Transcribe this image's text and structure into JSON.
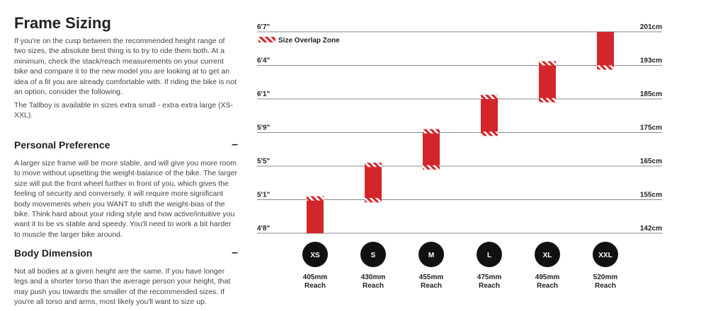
{
  "left_panel": {
    "title": "Frame Sizing",
    "intro": "If you're on the cusp between the recommended height range of two sizes, the absolute best thing is to try to ride them both. At a minimum, check the stack/reach measurements on your current bike and compare it to the new model you are looking at to get an idea of a fit you are already comfortable with. If riding the bike is not an option, consider the following.",
    "availability": "The Tallboy is available in sizes extra small - extra extra large (XS-XXL).",
    "sections": [
      {
        "title": "Personal Preference",
        "toggle": "–",
        "body": "A larger size frame will be more stable, and will give you more room to move without upsetting the weight-balance of the bike. The larger size will put the front wheel further in front of you, which gives the feeling of security and conversely, it will require more significant body movements when you WANT to shift the weight-bias of the bike. Think hard about your riding style and how active/intuitive you want it to be vs stable and speedy. You'll need to work a bit harder to muscle the larger bike around."
      },
      {
        "title": "Body Dimension",
        "toggle": "–",
        "body": "Not all bodies at a given height are the same. If you have longer legs and a shorter torso than the average person your height, that may push you towards the smaller of the recommended sizes. If you're all torso and arms, most likely you'll want to size up."
      }
    ]
  },
  "chart_data": {
    "type": "bar",
    "legend": "Size Overlap Zone",
    "legend_position": "top-left",
    "bar_color": "#d3262b",
    "overlap_pattern": "red-white-diagonal-stripes",
    "ylim_cm": [
      142,
      201
    ],
    "y_ticks": [
      {
        "cm": 201,
        "left": "6'7\"",
        "right": "201cm"
      },
      {
        "cm": 193,
        "left": "6'4\"",
        "right": "193cm"
      },
      {
        "cm": 185,
        "left": "6'1\"",
        "right": "185cm"
      },
      {
        "cm": 175,
        "left": "5'9\"",
        "right": "175cm"
      },
      {
        "cm": 165,
        "left": "5'5\"",
        "right": "165cm"
      },
      {
        "cm": 155,
        "left": "5'1\"",
        "right": "155cm"
      },
      {
        "cm": 142,
        "left": "4'8\"",
        "right": "142cm"
      }
    ],
    "sizes": [
      {
        "label": "XS",
        "reach": "405mm",
        "reach_label": "Reach",
        "min": 142,
        "max": 156,
        "overlap_top": true,
        "overlap_bottom": false
      },
      {
        "label": "S",
        "reach": "430mm",
        "reach_label": "Reach",
        "min": 154,
        "max": 166,
        "overlap_top": true,
        "overlap_bottom": true
      },
      {
        "label": "M",
        "reach": "455mm",
        "reach_label": "Reach",
        "min": 164,
        "max": 176,
        "overlap_top": true,
        "overlap_bottom": true
      },
      {
        "label": "L",
        "reach": "475mm",
        "reach_label": "Reach",
        "min": 174,
        "max": 186,
        "overlap_top": true,
        "overlap_bottom": true
      },
      {
        "label": "XL",
        "reach": "495mm",
        "reach_label": "Reach",
        "min": 184,
        "max": 194,
        "overlap_top": true,
        "overlap_bottom": true
      },
      {
        "label": "XXL",
        "reach": "520mm",
        "reach_label": "Reach",
        "min": 192,
        "max": 201,
        "overlap_top": false,
        "overlap_bottom": true
      }
    ]
  }
}
